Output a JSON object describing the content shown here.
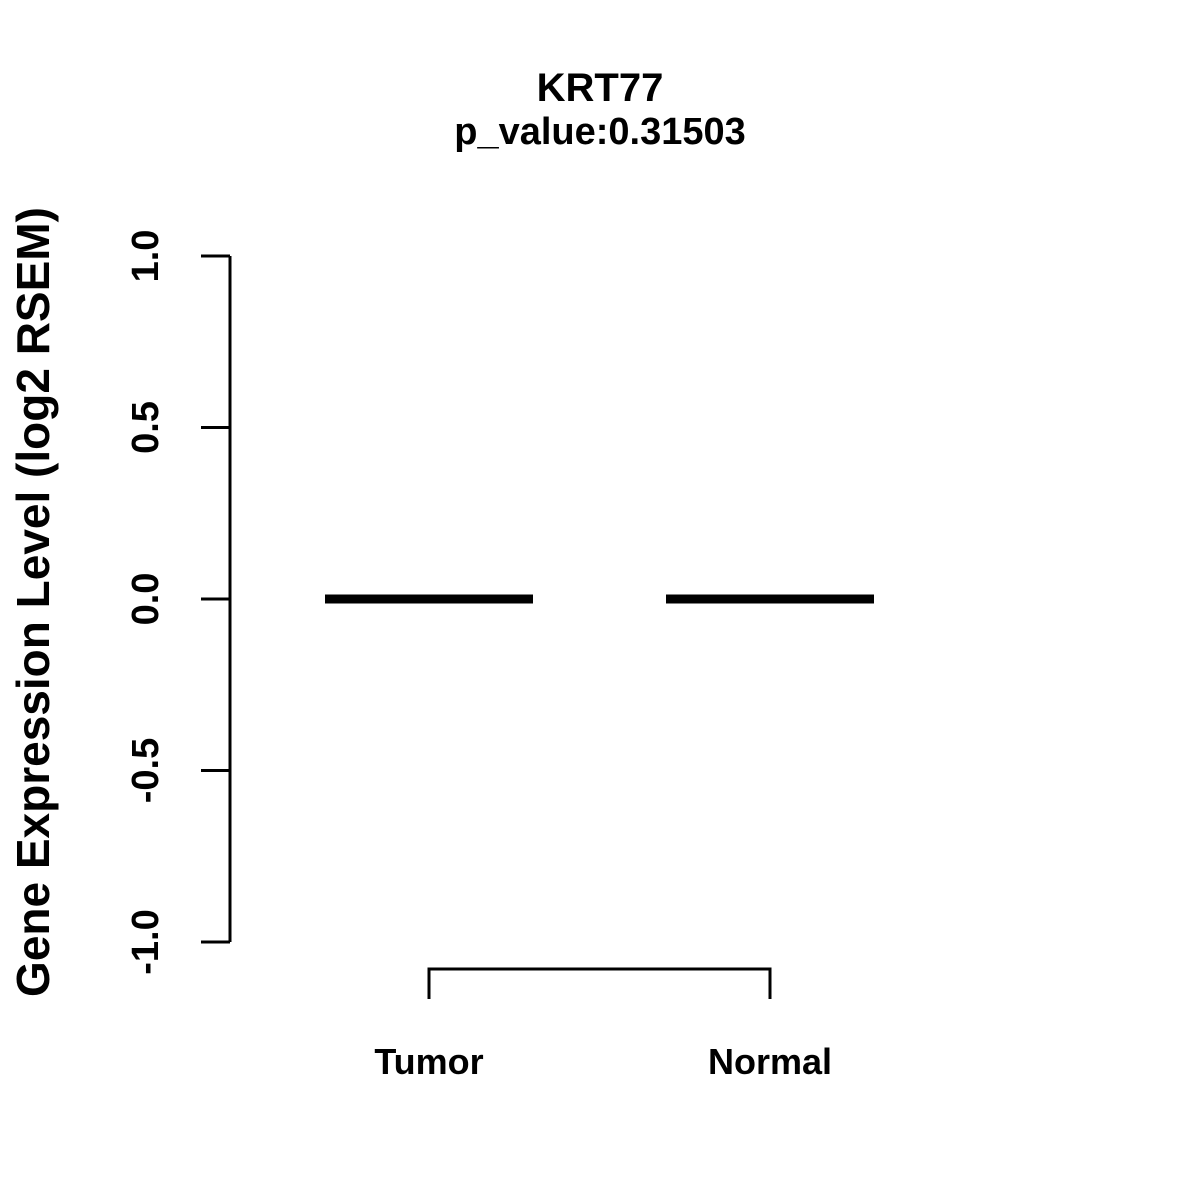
{
  "chart_data": {
    "type": "boxplot",
    "title": "KRT77",
    "subtitle": "p_value:0.31503",
    "gene": "KRT77",
    "p_value": 0.31503,
    "ylabel": "Gene Expression Level (log2 RSEM)",
    "xlabel": "",
    "ylim": [
      -1.0,
      1.0
    ],
    "ytick_values": [
      1.0,
      0.5,
      0.0,
      -0.5,
      -1.0
    ],
    "ytick_labels": [
      "1.0",
      "0.5",
      "0.0",
      "-0.5",
      "-1.0"
    ],
    "categories": [
      "Tumor",
      "Normal"
    ],
    "series": [
      {
        "name": "Tumor",
        "median": 0.0
      },
      {
        "name": "Normal",
        "median": 0.0
      }
    ],
    "comparison_bracket": {
      "between": [
        "Tumor",
        "Normal"
      ]
    },
    "grid": false,
    "legend": "none",
    "colors": {
      "foreground": "#000000",
      "background": "#ffffff"
    }
  }
}
